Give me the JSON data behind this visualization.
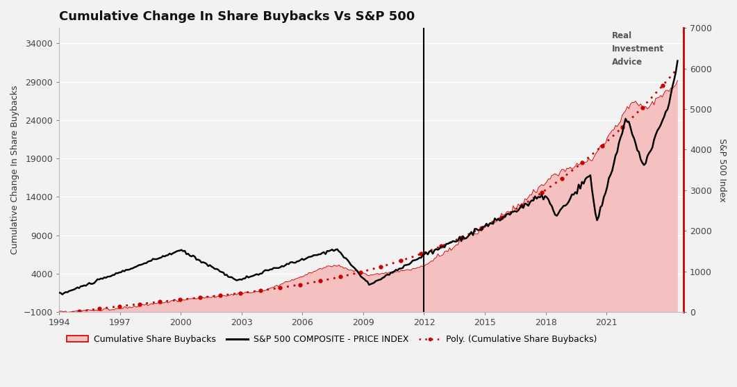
{
  "title": "Cumulative Change In Share Buybacks Vs S&P 500",
  "ylabel_left": "Cumulative Change In Share Buybacks",
  "ylabel_right": "S&P 500 Index",
  "background_color": "#f2f2f2",
  "plot_bg_color": "#f2f2f2",
  "vline_x": 2012.0,
  "ylim_left": [
    -1000,
    36000
  ],
  "ylim_right": [
    0,
    7000
  ],
  "yticks_left": [
    -1000,
    4000,
    9000,
    14000,
    19000,
    24000,
    29000,
    34000
  ],
  "yticks_right": [
    0,
    1000,
    2000,
    3000,
    4000,
    5000,
    6000,
    7000
  ],
  "xticks": [
    1994,
    1997,
    2000,
    2003,
    2006,
    2009,
    2012,
    2015,
    2018,
    2021
  ],
  "xmin": 1994.0,
  "xmax": 2024.8,
  "title_fontsize": 13,
  "axis_label_fontsize": 9,
  "tick_fontsize": 9,
  "legend_fontsize": 9,
  "buyback_fill_color": "#f5c0c0",
  "buyback_line_color": "#cc0000",
  "sp500_color": "#000000",
  "poly_color": "#cc0000",
  "right_spine_color": "#cc0000",
  "watermark_text": "Real\nInvestment\nAdvice"
}
